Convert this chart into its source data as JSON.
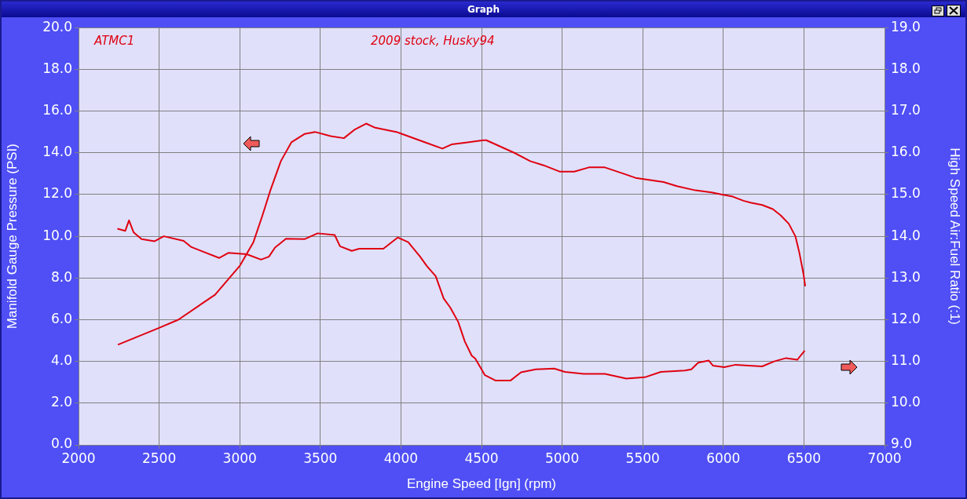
{
  "chart_data": {
    "type": "line",
    "title": "Graph",
    "xlabel": "Engine Speed [Ign] (rpm)",
    "ylabel": "Manifold Gauge Pressure (PSI)",
    "y2label": "High Speed Air:Fuel Ratio (:1)",
    "annotations": [
      "ATMC1",
      "2009 stock, Husky94"
    ],
    "xlim": [
      2000,
      7000
    ],
    "xticks": [
      2000,
      2500,
      3000,
      3500,
      4000,
      4500,
      5000,
      5500,
      6000,
      6500,
      7000
    ],
    "ylim": [
      0,
      20
    ],
    "yticks": [
      {
        "value": 0,
        "label": "0.0"
      },
      {
        "value": 2,
        "label": "2.0"
      },
      {
        "value": 4,
        "label": "4.0"
      },
      {
        "value": 6,
        "label": "6.0"
      },
      {
        "value": 8,
        "label": "8.0"
      },
      {
        "value": 10,
        "label": "10.0"
      },
      {
        "value": 12,
        "label": "12.0"
      },
      {
        "value": 14,
        "label": "14.0"
      },
      {
        "value": 16,
        "label": "16.0"
      },
      {
        "value": 18,
        "label": "18.0"
      },
      {
        "value": 20,
        "label": "20.0"
      }
    ],
    "y2lim": [
      9,
      19
    ],
    "y2ticks": [
      {
        "value": 9,
        "label": "9.0"
      },
      {
        "value": 10,
        "label": "10.0"
      },
      {
        "value": 11,
        "label": "11.0"
      },
      {
        "value": 12,
        "label": "12.0"
      },
      {
        "value": 13,
        "label": "13.0"
      },
      {
        "value": 14,
        "label": "14.0"
      },
      {
        "value": 15,
        "label": "15.0"
      },
      {
        "value": 16,
        "label": "16.0"
      },
      {
        "value": 17,
        "label": "17.0"
      },
      {
        "value": 18,
        "label": "18.0"
      },
      {
        "value": 19,
        "label": "19.0"
      }
    ],
    "grid": true,
    "legend": false,
    "line_style": "solid",
    "series": [
      {
        "color": "#e00010",
        "x": [
          2244,
          2497,
          2619,
          2847,
          3002,
          3084,
          3141,
          3190,
          3255,
          3320,
          3401,
          3467,
          3564,
          3646,
          3711,
          3784,
          3841,
          3972,
          4151,
          4257,
          4314,
          4412,
          4510,
          4530,
          4703,
          4802,
          4885,
          4984,
          5075,
          5166,
          5265,
          5381,
          5455,
          5538,
          5629,
          5712,
          5827,
          5927,
          5993,
          6059,
          6125,
          6174,
          6241,
          6307,
          6356,
          6406,
          6447,
          6472,
          6497,
          6508
        ],
        "values": [
          4.8,
          5.6,
          6.0,
          7.2,
          8.6,
          9.7,
          11.0,
          12.2,
          13.6,
          14.5,
          14.9,
          15.0,
          14.8,
          14.7,
          15.1,
          15.4,
          15.2,
          15.0,
          14.5,
          14.2,
          14.4,
          14.5,
          14.6,
          14.6,
          14.0,
          13.6,
          13.4,
          13.1,
          13.1,
          13.3,
          13.3,
          13.0,
          12.8,
          12.7,
          12.6,
          12.4,
          12.2,
          12.1,
          12.0,
          11.9,
          11.7,
          11.6,
          11.5,
          11.3,
          11.0,
          10.6,
          10.0,
          9.2,
          8.2,
          7.6
        ]
      },
      {
        "axis": "y2",
        "color": "#e00010",
        "x": [
          2241,
          2290,
          2313,
          2342,
          2391,
          2472,
          2529,
          2652,
          2700,
          2872,
          2929,
          3043,
          3132,
          3181,
          3219,
          3287,
          3401,
          3483,
          3589,
          3622,
          3695,
          3741,
          3891,
          3980,
          4045,
          4119,
          4160,
          4216,
          4265,
          4306,
          4355,
          4396,
          4439,
          4461,
          4500,
          4521,
          4588,
          4679,
          4745,
          4836,
          4951,
          5017,
          5133,
          5265,
          5398,
          5513,
          5612,
          5761,
          5802,
          5844,
          5910,
          5935,
          6006,
          6076,
          6158,
          6241,
          6315,
          6389,
          6459,
          6505
        ],
        "values": [
          14.18,
          14.13,
          14.38,
          14.09,
          13.93,
          13.88,
          14.0,
          13.89,
          13.74,
          13.48,
          13.6,
          13.57,
          13.44,
          13.51,
          13.73,
          13.94,
          13.93,
          14.07,
          14.03,
          13.76,
          13.65,
          13.7,
          13.7,
          13.97,
          13.86,
          13.51,
          13.29,
          13.04,
          12.51,
          12.29,
          11.95,
          11.48,
          11.14,
          11.07,
          10.81,
          10.67,
          10.54,
          10.54,
          10.74,
          10.81,
          10.83,
          10.75,
          10.7,
          10.7,
          10.59,
          10.62,
          10.75,
          10.78,
          10.81,
          10.97,
          11.02,
          10.9,
          10.86,
          10.92,
          10.9,
          10.88,
          11.0,
          11.08,
          11.04,
          11.26
        ]
      }
    ]
  }
}
